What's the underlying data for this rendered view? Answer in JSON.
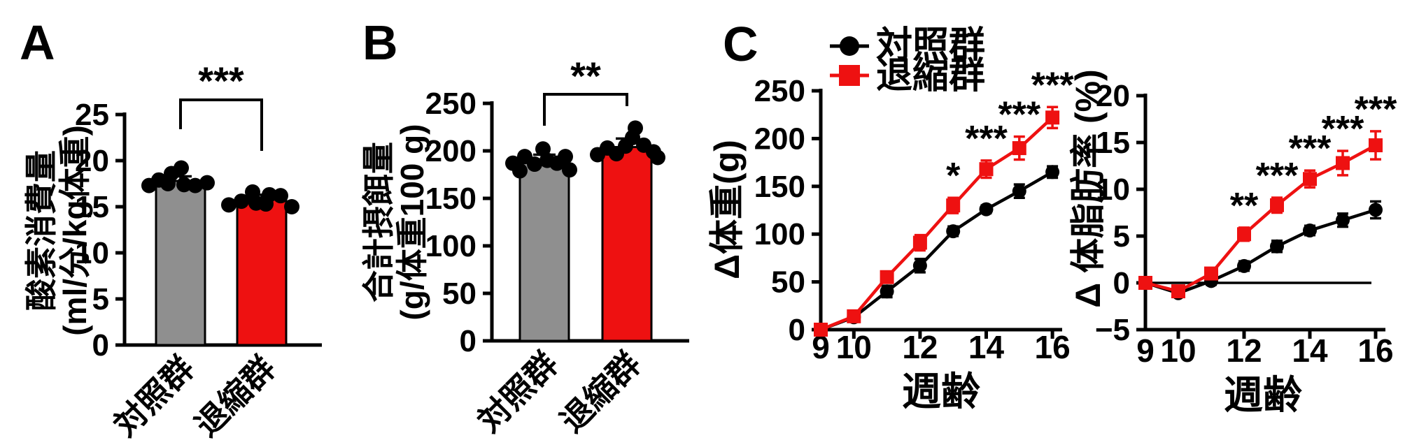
{
  "panels": {
    "a": {
      "label": "A"
    },
    "b": {
      "label": "B"
    },
    "c": {
      "label": "C"
    }
  },
  "colors": {
    "control_black": "#000000",
    "regression_red": "#EE1111",
    "control_bar_gray": "#8F8F8F",
    "axis_black": "#000000"
  },
  "legend": {
    "items": [
      {
        "label": "対照群",
        "color": "#000000",
        "marker": "circle"
      },
      {
        "label": "退縮群",
        "color": "#EE1111",
        "marker": "square"
      }
    ]
  },
  "chart_data": [
    {
      "id": "A",
      "type": "bar",
      "ylabel_lines": [
        "酸素消費量",
        "(ml/分/kg体重)"
      ],
      "ylim": [
        0,
        25
      ],
      "yticks": [
        0,
        5,
        10,
        15,
        20,
        25
      ],
      "categories": [
        "対照群",
        "退縮群"
      ],
      "values": [
        17.8,
        15.8
      ],
      "errors": [
        0.5,
        0.5
      ],
      "bar_colors": [
        "#8F8F8F",
        "#EE1111"
      ],
      "scatter": [
        [
          [
            -45,
            17.3
          ],
          [
            -31,
            17.9
          ],
          [
            -18,
            17.5
          ],
          [
            -13,
            18.6
          ],
          [
            1,
            19.2
          ],
          [
            5,
            17.4
          ],
          [
            21,
            17.3
          ],
          [
            38,
            17.6
          ]
        ],
        [
          [
            -47,
            15.2
          ],
          [
            -29,
            15.6
          ],
          [
            -13,
            16.6
          ],
          [
            -8,
            15.4
          ],
          [
            6,
            15.3
          ],
          [
            11,
            16.3
          ],
          [
            27,
            16.2
          ],
          [
            43,
            15.0
          ]
        ]
      ],
      "significance": "***"
    },
    {
      "id": "B",
      "type": "bar",
      "ylabel_lines": [
        "合計摂餌量",
        "(g/体重100 g)"
      ],
      "ylim": [
        0,
        250
      ],
      "yticks": [
        0,
        50,
        100,
        150,
        200,
        250
      ],
      "categories": [
        "対照群",
        "退縮群"
      ],
      "values": [
        188,
        204
      ],
      "errors": [
        8,
        9
      ],
      "bar_colors": [
        "#8F8F8F",
        "#EE1111"
      ],
      "scatter": [
        [
          [
            -45,
            187
          ],
          [
            -35,
            179
          ],
          [
            -28,
            194
          ],
          [
            -14,
            186
          ],
          [
            -2,
            202
          ],
          [
            4,
            190
          ],
          [
            18,
            187
          ],
          [
            30,
            194
          ],
          [
            36,
            180
          ]
        ],
        [
          [
            -42,
            196
          ],
          [
            -28,
            203
          ],
          [
            -15,
            197
          ],
          [
            -2,
            205
          ],
          [
            8,
            214
          ],
          [
            12,
            224
          ],
          [
            24,
            206
          ],
          [
            38,
            199
          ],
          [
            44,
            193
          ]
        ]
      ],
      "significance": "**"
    },
    {
      "id": "C-left",
      "type": "line",
      "ylabel": "Δ体重(g)",
      "xlabel": "週齢",
      "ylim": [
        0,
        250
      ],
      "yticks": [
        0,
        50,
        100,
        150,
        200,
        250
      ],
      "x": [
        9,
        10,
        11,
        12,
        13,
        14,
        15,
        16
      ],
      "xtick_labels": [
        9,
        10,
        12,
        14,
        16
      ],
      "series": [
        {
          "name": "対照群",
          "color": "#000000",
          "marker": "circle",
          "values": [
            0,
            13,
            40,
            67,
            103,
            126,
            145,
            165
          ],
          "errors": [
            2,
            3,
            6,
            7,
            5,
            4,
            7,
            6
          ]
        },
        {
          "name": "退縮群",
          "color": "#EE1111",
          "marker": "square",
          "values": [
            0,
            14,
            55,
            91,
            130,
            168,
            190,
            222
          ],
          "errors": [
            3,
            3,
            5,
            8,
            8,
            9,
            12,
            11
          ]
        }
      ],
      "significance": [
        {
          "x": 13,
          "label": "*"
        },
        {
          "x": 14,
          "label": "***"
        },
        {
          "x": 15,
          "label": "***"
        },
        {
          "x": 16,
          "label": "***"
        }
      ]
    },
    {
      "id": "C-right",
      "type": "line",
      "ylabel": "Δ 体脂肪率 (%)",
      "xlabel": "週齢",
      "ylim": [
        -5,
        20
      ],
      "yticks": [
        -5,
        0,
        5,
        10,
        15,
        20
      ],
      "zero_line": true,
      "x": [
        9,
        10,
        11,
        12,
        13,
        14,
        15,
        16
      ],
      "xtick_labels": [
        9,
        10,
        12,
        14,
        16
      ],
      "series": [
        {
          "name": "対照群",
          "color": "#000000",
          "marker": "circle",
          "values": [
            0,
            -1.1,
            0.2,
            1.8,
            3.9,
            5.6,
            6.7,
            7.8
          ],
          "errors": [
            0.2,
            0.3,
            0.4,
            0.5,
            0.6,
            0.5,
            0.7,
            0.9
          ]
        },
        {
          "name": "退縮群",
          "color": "#EE1111",
          "marker": "square",
          "values": [
            0,
            -0.9,
            1.0,
            5.2,
            8.3,
            11.1,
            12.8,
            14.7
          ],
          "errors": [
            0.2,
            0.3,
            0.4,
            0.7,
            0.8,
            0.9,
            1.3,
            1.5
          ]
        }
      ],
      "significance": [
        {
          "x": 12,
          "label": "**"
        },
        {
          "x": 13,
          "label": "***"
        },
        {
          "x": 14,
          "label": "***"
        },
        {
          "x": 15,
          "label": "***"
        },
        {
          "x": 16,
          "label": "***"
        }
      ]
    }
  ]
}
